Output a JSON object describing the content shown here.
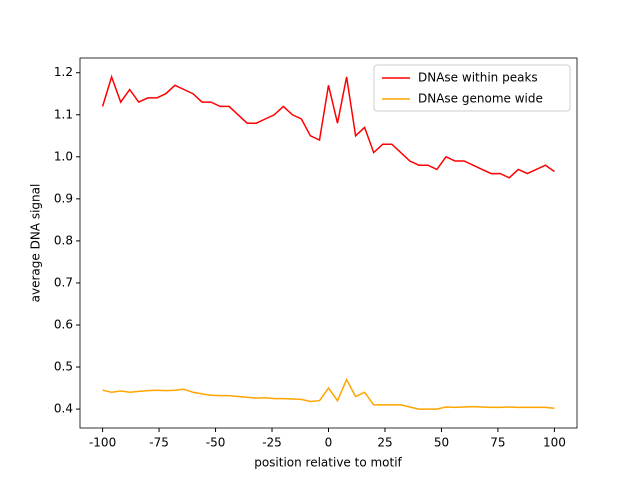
{
  "chart_data": {
    "type": "line",
    "x": [
      -100,
      -96,
      -92,
      -88,
      -84,
      -80,
      -76,
      -72,
      -68,
      -64,
      -60,
      -56,
      -52,
      -48,
      -44,
      -40,
      -36,
      -32,
      -28,
      -24,
      -20,
      -16,
      -12,
      -8,
      -4,
      0,
      4,
      8,
      12,
      16,
      20,
      24,
      28,
      32,
      36,
      40,
      44,
      48,
      52,
      56,
      60,
      64,
      68,
      72,
      76,
      80,
      84,
      88,
      92,
      96,
      100
    ],
    "series": [
      {
        "name": "DNAse within peaks",
        "color": "#ff0000",
        "values": [
          1.12,
          1.19,
          1.13,
          1.16,
          1.13,
          1.14,
          1.14,
          1.15,
          1.17,
          1.16,
          1.15,
          1.13,
          1.13,
          1.12,
          1.12,
          1.1,
          1.08,
          1.08,
          1.09,
          1.1,
          1.12,
          1.1,
          1.09,
          1.05,
          1.04,
          1.17,
          1.08,
          1.19,
          1.05,
          1.07,
          1.01,
          1.03,
          1.03,
          1.01,
          0.99,
          0.98,
          0.98,
          0.97,
          1.0,
          0.99,
          0.99,
          0.98,
          0.97,
          0.96,
          0.96,
          0.95,
          0.97,
          0.96,
          0.97,
          0.98,
          0.965
        ]
      },
      {
        "name": "DNAse genome wide",
        "color": "#ffa500",
        "values": [
          0.445,
          0.44,
          0.443,
          0.44,
          0.442,
          0.444,
          0.445,
          0.444,
          0.445,
          0.447,
          0.44,
          0.436,
          0.433,
          0.432,
          0.432,
          0.43,
          0.428,
          0.426,
          0.427,
          0.425,
          0.425,
          0.424,
          0.423,
          0.418,
          0.42,
          0.45,
          0.42,
          0.47,
          0.43,
          0.44,
          0.41,
          0.41,
          0.41,
          0.41,
          0.405,
          0.4,
          0.4,
          0.4,
          0.405,
          0.404,
          0.405,
          0.406,
          0.405,
          0.404,
          0.404,
          0.405,
          0.404,
          0.404,
          0.404,
          0.404,
          0.402
        ]
      }
    ],
    "xlabel": "position relative to motif",
    "ylabel": "average DNA signal",
    "xlim": [
      -110,
      110
    ],
    "ylim": [
      0.355,
      1.235
    ],
    "xticks": [
      -100,
      -75,
      -50,
      -25,
      0,
      25,
      50,
      75,
      100
    ],
    "yticks": [
      {
        "value": 0.4,
        "label": "0.4"
      },
      {
        "value": 0.5,
        "label": "0.5"
      },
      {
        "value": 0.6,
        "label": "0.6"
      },
      {
        "value": 0.7,
        "label": "0.7"
      },
      {
        "value": 0.8,
        "label": "0.8"
      },
      {
        "value": 0.9,
        "label": "0.9"
      },
      {
        "value": 1.0,
        "label": "1.0"
      },
      {
        "value": 1.1,
        "label": "1.1"
      },
      {
        "value": 1.2,
        "label": "1.2"
      }
    ],
    "legend": "upper right",
    "grid": false
  }
}
